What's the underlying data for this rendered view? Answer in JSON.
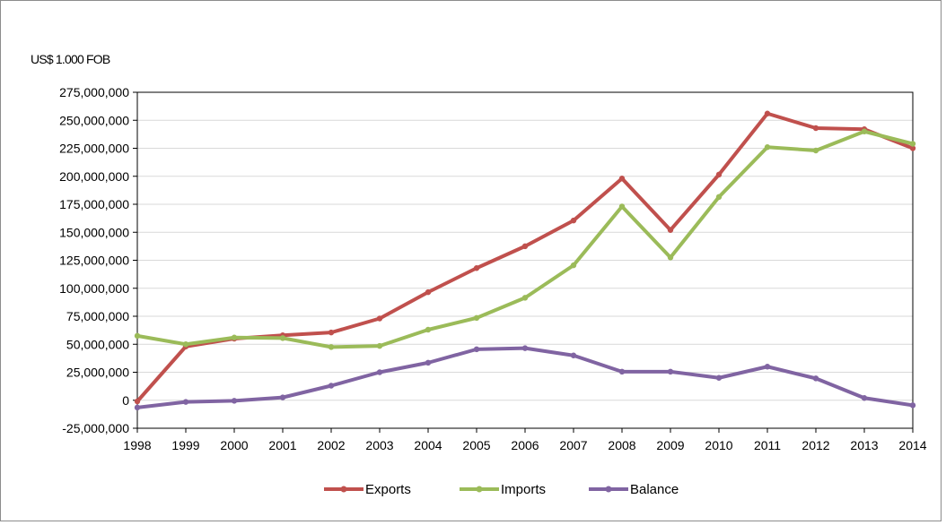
{
  "chart_data": {
    "type": "line",
    "title": "",
    "ylabel": "US$ 1.000 FOB",
    "xlabel": "",
    "ylim": [
      -25000000,
      275000000
    ],
    "ytick_step": 25000000,
    "grid": "horizontal",
    "legend_position": "bottom",
    "x": [
      "1998",
      "1999",
      "2000",
      "2001",
      "2002",
      "2003",
      "2004",
      "2005",
      "2006",
      "2007",
      "2008",
      "2009",
      "2010",
      "2011",
      "2012",
      "2013",
      "2014"
    ],
    "series": [
      {
        "name": "Exports",
        "color": "#c0504d",
        "values": [
          -1000000,
          48000000,
          55000000,
          58000000,
          60500000,
          73000000,
          96500000,
          118000000,
          137500000,
          160500000,
          198000000,
          152000000,
          201500000,
          256000000,
          243000000,
          242000000,
          225000000
        ]
      },
      {
        "name": "Imports",
        "color": "#9bbb59",
        "values": [
          57500000,
          50000000,
          56000000,
          55500000,
          47500000,
          48500000,
          63000000,
          73500000,
          91500000,
          120500000,
          173000000,
          127500000,
          181500000,
          226000000,
          223000000,
          240000000,
          229000000
        ]
      },
      {
        "name": "Balance",
        "color": "#8064a2",
        "values": [
          -6500000,
          -1500000,
          -500000,
          2500000,
          13000000,
          25000000,
          33500000,
          45500000,
          46500000,
          40000000,
          25500000,
          25500000,
          20000000,
          30000000,
          19500000,
          2000000,
          -4500000
        ]
      }
    ]
  }
}
